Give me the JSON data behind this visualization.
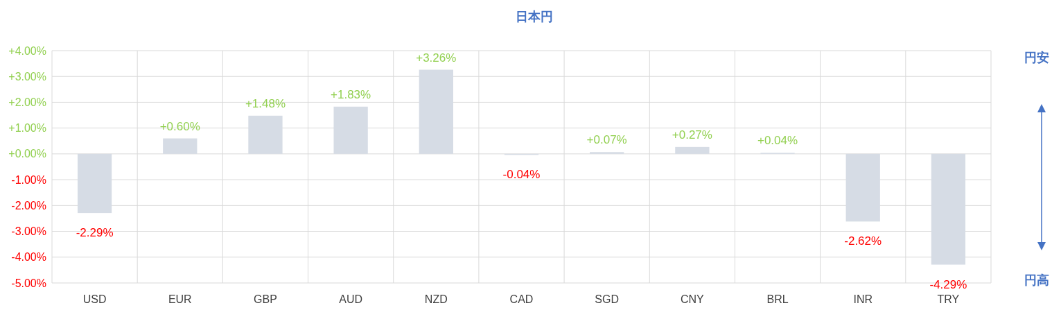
{
  "chart_data": {
    "type": "bar",
    "title": "日本円",
    "categories": [
      "USD",
      "EUR",
      "GBP",
      "AUD",
      "NZD",
      "CAD",
      "SGD",
      "CNY",
      "BRL",
      "INR",
      "TRY"
    ],
    "values": [
      -2.29,
      0.6,
      1.48,
      1.83,
      3.26,
      -0.04,
      0.07,
      0.27,
      0.04,
      -2.62,
      -4.29
    ],
    "value_labels": [
      "-2.29%",
      "+0.60%",
      "+1.48%",
      "+1.83%",
      "+3.26%",
      "-0.04%",
      "+0.07%",
      "+0.27%",
      "+0.04%",
      "-2.62%",
      "-4.29%"
    ],
    "color": "#d6dce5",
    "ylim": [
      -5,
      4
    ],
    "yticks": [
      {
        "value": 4,
        "label": "+4.00%"
      },
      {
        "value": 3,
        "label": "+3.00%"
      },
      {
        "value": 2,
        "label": "+2.00%"
      },
      {
        "value": 1,
        "label": "+1.00%"
      },
      {
        "value": 0,
        "label": "+0.00%"
      },
      {
        "value": -1,
        "label": "-1.00%"
      },
      {
        "value": -2,
        "label": "-2.00%"
      },
      {
        "value": -3,
        "label": "-3.00%"
      },
      {
        "value": -4,
        "label": "-4.00%"
      },
      {
        "value": -5,
        "label": "-5.00%"
      }
    ],
    "grid": true,
    "annotations": [
      "円安",
      "円高"
    ]
  }
}
